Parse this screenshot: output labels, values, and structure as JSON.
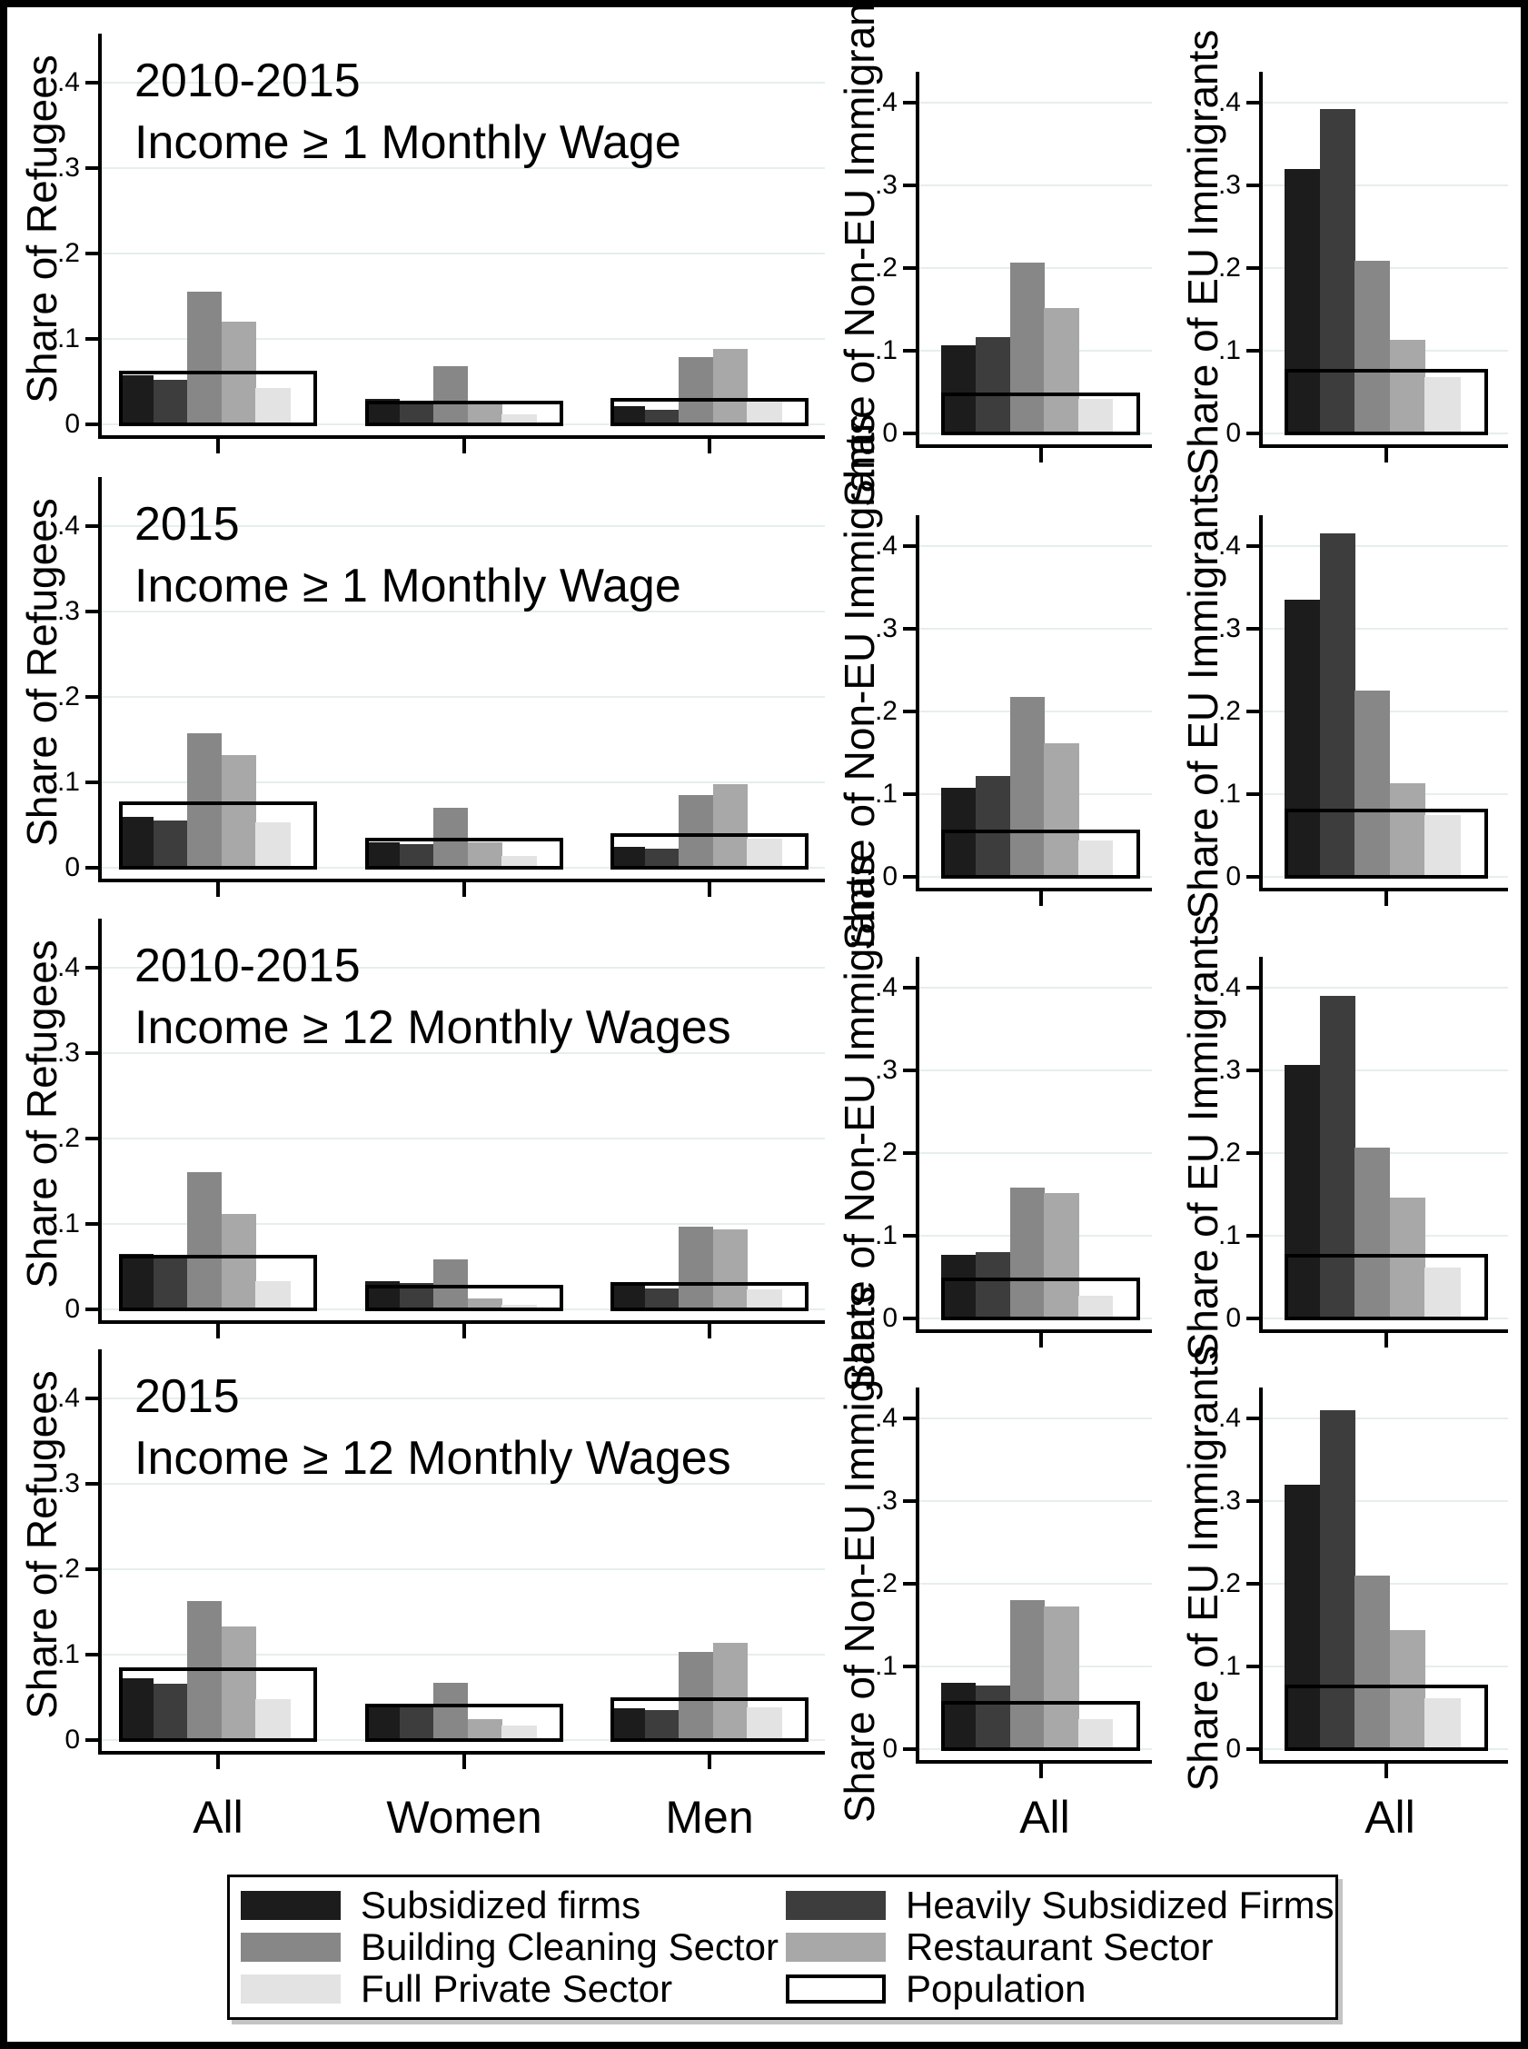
{
  "figure_type": "grouped-bar-figure",
  "colors": {
    "background": "#ffffff",
    "frame": "#000000",
    "axis": "#000000",
    "gridline": "#e5efec",
    "text": "#000000",
    "series": [
      "#1c1c1c",
      "#3d3d3d",
      "#878787",
      "#a8a8a8",
      "#e3e3e3"
    ],
    "population_fill": "#ffffff",
    "population_border": "#000000"
  },
  "axes": {
    "ytick_values": [
      0,
      0.1,
      0.2,
      0.3,
      0.4
    ],
    "ytick_labels": [
      "0",
      ".1",
      ".2",
      ".3",
      ".4"
    ]
  },
  "bottom_axis": {
    "left": [
      "All",
      "Women",
      "Men"
    ],
    "middle": [
      "All"
    ],
    "right": [
      "All"
    ]
  },
  "legend": {
    "items": [
      {
        "label": "Subsidized firms",
        "color": "#1c1c1c",
        "outlined": false
      },
      {
        "label": "Heavily Subsidized Firms",
        "color": "#3d3d3d",
        "outlined": false
      },
      {
        "label": "Building Cleaning Sector",
        "color": "#878787",
        "outlined": false
      },
      {
        "label": "Restaurant Sector",
        "color": "#a8a8a8",
        "outlined": false
      },
      {
        "label": "Full Private Sector",
        "color": "#e3e3e3",
        "outlined": false
      },
      {
        "label": "Population",
        "color": "#ffffff",
        "outlined": true
      }
    ]
  },
  "series_names": [
    "Subsidized firms",
    "Heavily Subsidized Firms",
    "Building Cleaning Sector",
    "Restaurant Sector",
    "Full Private Sector"
  ],
  "chart_data": [
    {
      "type": "bar",
      "title": "2010-2015",
      "subtitle": "Income ≥ 1 Monthly Wage",
      "ylim": [
        0,
        0.45
      ],
      "panels": [
        {
          "ylabel": "Share of Refugees",
          "categories": [
            "All",
            "Women",
            "Men"
          ],
          "groups": [
            {
              "category": "All",
              "values": [
                0.057,
                0.052,
                0.155,
                0.12,
                0.043
              ],
              "population": 0.063
            },
            {
              "category": "Women",
              "values": [
                0.03,
                0.028,
                0.068,
                0.026,
                0.012
              ],
              "population": 0.028
            },
            {
              "category": "Men",
              "values": [
                0.021,
                0.017,
                0.079,
                0.088,
                0.028
              ],
              "population": 0.031
            }
          ]
        },
        {
          "ylabel": "Share of Non-EU Immigrants",
          "categories": [
            "All"
          ],
          "groups": [
            {
              "category": "All",
              "values": [
                0.107,
                0.116,
                0.207,
                0.152,
                0.042
              ],
              "population": 0.05
            }
          ]
        },
        {
          "ylabel": "Share of EU Immigrants",
          "categories": [
            "All"
          ],
          "groups": [
            {
              "category": "All",
              "values": [
                0.32,
                0.392,
                0.209,
                0.113,
                0.068
              ],
              "population": 0.078
            }
          ]
        }
      ]
    },
    {
      "type": "bar",
      "title": "2015",
      "subtitle": "Income ≥ 1 Monthly Wage",
      "ylim": [
        0,
        0.45
      ],
      "panels": [
        {
          "ylabel": "Share of Refugees",
          "categories": [
            "All",
            "Women",
            "Men"
          ],
          "groups": [
            {
              "category": "All",
              "values": [
                0.06,
                0.055,
                0.157,
                0.132,
                0.053
              ],
              "population": 0.078
            },
            {
              "category": "Women",
              "values": [
                0.03,
                0.028,
                0.07,
                0.03,
                0.014
              ],
              "population": 0.035
            },
            {
              "category": "Men",
              "values": [
                0.025,
                0.022,
                0.085,
                0.098,
                0.034
              ],
              "population": 0.04
            }
          ]
        },
        {
          "ylabel": "Share of Non-EU Immigrants",
          "categories": [
            "All"
          ],
          "groups": [
            {
              "category": "All",
              "values": [
                0.108,
                0.122,
                0.218,
                0.161,
                0.044
              ],
              "population": 0.057
            }
          ]
        },
        {
          "ylabel": "Share of EU Immigrants",
          "categories": [
            "All"
          ],
          "groups": [
            {
              "category": "All",
              "values": [
                0.335,
                0.415,
                0.225,
                0.113,
                0.075
              ],
              "population": 0.082
            }
          ]
        }
      ]
    },
    {
      "type": "bar",
      "title": "2010-2015",
      "subtitle": "Income ≥ 12 Monthly Wages",
      "ylim": [
        0,
        0.45
      ],
      "panels": [
        {
          "ylabel": "Share of Refugees",
          "categories": [
            "All",
            "Women",
            "Men"
          ],
          "groups": [
            {
              "category": "All",
              "values": [
                0.065,
                0.06,
                0.161,
                0.112,
                0.033
              ],
              "population": 0.064
            },
            {
              "category": "Women",
              "values": [
                0.033,
                0.031,
                0.059,
                0.013,
                0.005
              ],
              "population": 0.029
            },
            {
              "category": "Men",
              "values": [
                0.028,
                0.024,
                0.097,
                0.094,
                0.023
              ],
              "population": 0.032
            }
          ]
        },
        {
          "ylabel": "Share of Non-EU Immigrants",
          "categories": [
            "All"
          ],
          "groups": [
            {
              "category": "All",
              "values": [
                0.077,
                0.08,
                0.158,
                0.152,
                0.028
              ],
              "population": 0.05
            }
          ]
        },
        {
          "ylabel": "Share of EU Immigrants",
          "categories": [
            "All"
          ],
          "groups": [
            {
              "category": "All",
              "values": [
                0.307,
                0.39,
                0.207,
                0.146,
                0.062
              ],
              "population": 0.078
            }
          ]
        }
      ]
    },
    {
      "type": "bar",
      "title": "2015",
      "subtitle": "Income ≥ 12 Monthly Wages",
      "ylim": [
        0,
        0.45
      ],
      "panels": [
        {
          "ylabel": "Share of Refugees",
          "categories": [
            "All",
            "Women",
            "Men"
          ],
          "groups": [
            {
              "category": "All",
              "values": [
                0.072,
                0.066,
                0.163,
                0.133,
                0.048
              ],
              "population": 0.085
            },
            {
              "category": "Women",
              "values": [
                0.042,
                0.039,
                0.067,
                0.025,
                0.017
              ],
              "population": 0.043
            },
            {
              "category": "Men",
              "values": [
                0.037,
                0.035,
                0.103,
                0.114,
                0.038
              ],
              "population": 0.05
            }
          ]
        },
        {
          "ylabel": "Share of Non-EU Immigrants",
          "categories": [
            "All"
          ],
          "groups": [
            {
              "category": "All",
              "values": [
                0.08,
                0.077,
                0.18,
                0.172,
                0.036
              ],
              "population": 0.058
            }
          ]
        },
        {
          "ylabel": "Share of EU Immigrants",
          "categories": [
            "All"
          ],
          "groups": [
            {
              "category": "All",
              "values": [
                0.32,
                0.41,
                0.21,
                0.144,
                0.062
              ],
              "population": 0.078
            }
          ]
        }
      ]
    }
  ]
}
